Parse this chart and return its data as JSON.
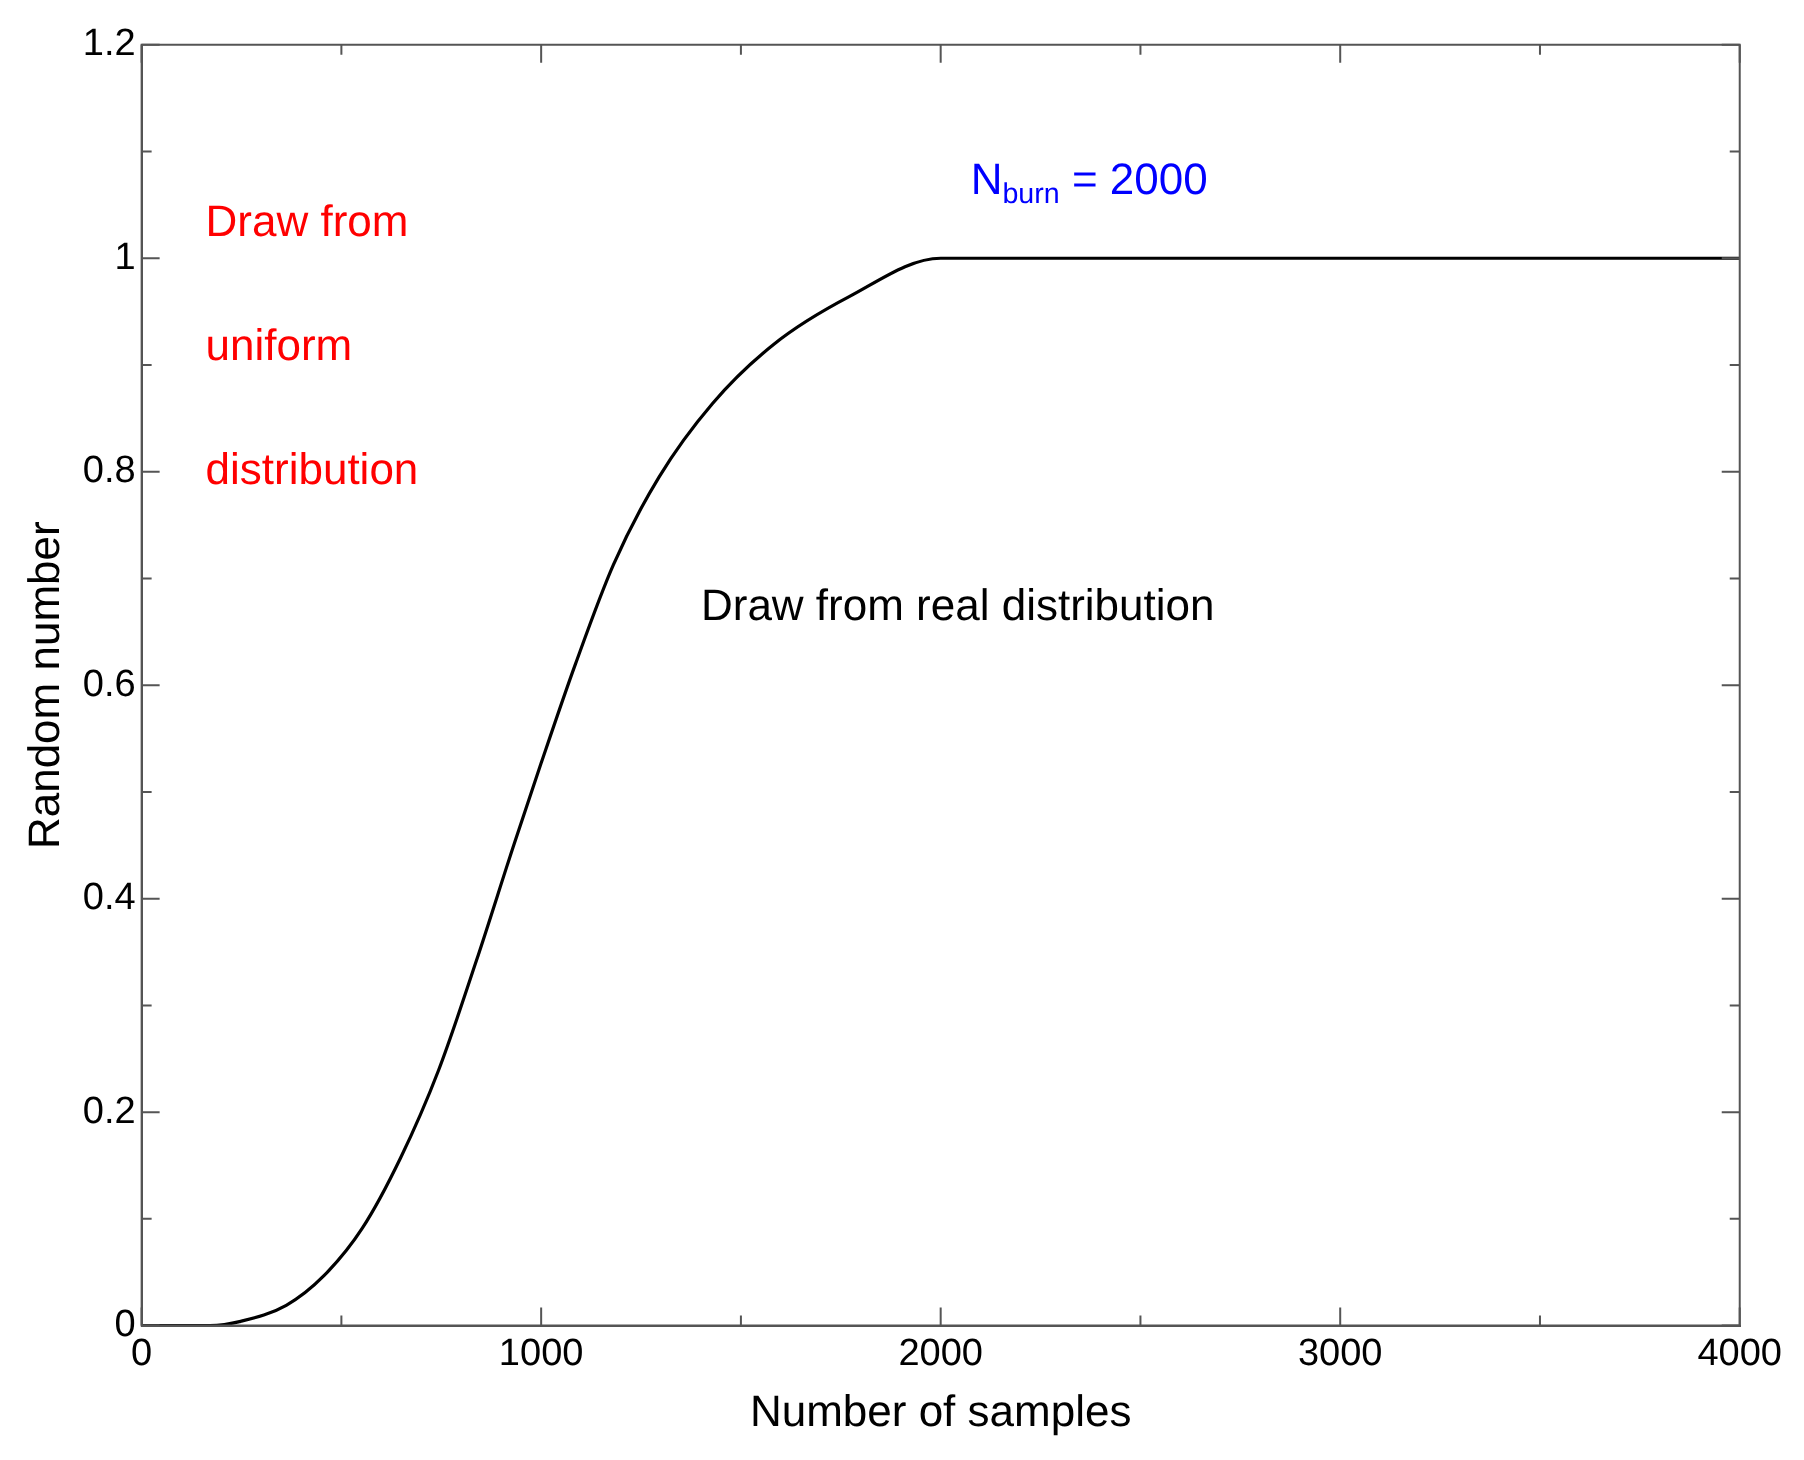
{
  "chart_data": {
    "type": "line",
    "xlabel": "Number of samples",
    "ylabel": "Random number",
    "x": [
      0,
      171,
      248,
      362,
      457,
      552,
      648,
      743,
      838,
      933,
      1000,
      1086,
      1181,
      1295,
      1429,
      1581,
      1771,
      2000,
      4000
    ],
    "series": [
      {
        "color": "#000000",
        "values": [
          0,
          0,
          0.004,
          0.019,
          0.047,
          0.091,
          0.157,
          0.239,
          0.342,
          0.452,
          0.527,
          0.62,
          0.713,
          0.795,
          0.864,
          0.919,
          0.964,
          1,
          1
        ]
      }
    ],
    "xlim": [
      0,
      4000
    ],
    "ylim": [
      0,
      1.2
    ],
    "xticks": [
      0,
      {
        "value": 500,
        "label": null
      },
      1000,
      {
        "value": 1500,
        "label": null
      },
      2000,
      {
        "value": 2500,
        "label": null
      },
      3000,
      {
        "value": 3500,
        "label": null
      },
      4000
    ],
    "yticks": [
      0,
      {
        "value": 0.1,
        "label": null
      },
      0.2,
      {
        "value": 0.3,
        "label": null
      },
      0.4,
      {
        "value": 0.5,
        "label": null
      },
      0.6,
      {
        "value": 0.7,
        "label": null
      },
      0.8,
      {
        "value": 0.9,
        "label": null
      },
      1,
      {
        "value": 1.1,
        "label": null
      },
      1.2
    ],
    "grid": false,
    "legend": false,
    "marker": "none",
    "line_style": "solid",
    "annotations": [
      "Draw from\nuniform\ndistribution",
      "Draw from real distribution",
      {
        "text": "N$_{burn}$ = 2000",
        "x": 2000,
        "y": 1
      }
    ]
  }
}
